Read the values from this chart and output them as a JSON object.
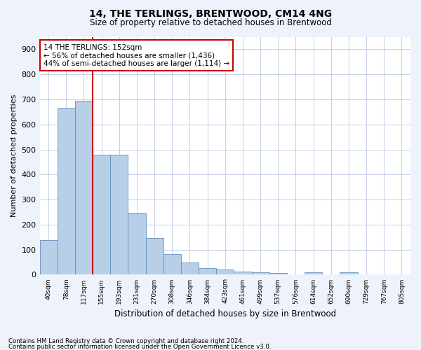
{
  "title1": "14, THE TERLINGS, BRENTWOOD, CM14 4NG",
  "title2": "Size of property relative to detached houses in Brentwood",
  "xlabel": "Distribution of detached houses by size in Brentwood",
  "ylabel": "Number of detached properties",
  "categories": [
    "40sqm",
    "78sqm",
    "117sqm",
    "155sqm",
    "193sqm",
    "231sqm",
    "270sqm",
    "308sqm",
    "346sqm",
    "384sqm",
    "423sqm",
    "461sqm",
    "499sqm",
    "537sqm",
    "576sqm",
    "614sqm",
    "652sqm",
    "690sqm",
    "729sqm",
    "767sqm",
    "805sqm"
  ],
  "values": [
    138,
    665,
    693,
    480,
    480,
    246,
    146,
    82,
    50,
    27,
    22,
    12,
    10,
    8,
    0,
    10,
    0,
    10,
    0,
    0,
    0
  ],
  "bar_color": "#b8cfe8",
  "bar_edge_color": "#6090c0",
  "vline_x": 2.5,
  "vline_color": "#cc0000",
  "annotation_text": "14 THE TERLINGS: 152sqm\n← 56% of detached houses are smaller (1,436)\n44% of semi-detached houses are larger (1,114) →",
  "annotation_box_color": "#ffffff",
  "annotation_box_edge": "#cc0000",
  "ylim": [
    0,
    950
  ],
  "yticks": [
    0,
    100,
    200,
    300,
    400,
    500,
    600,
    700,
    800,
    900
  ],
  "footer1": "Contains HM Land Registry data © Crown copyright and database right 2024.",
  "footer2": "Contains public sector information licensed under the Open Government Licence v3.0.",
  "bg_color": "#eef2fb",
  "plot_bg_color": "#ffffff",
  "grid_color": "#c5cfe8"
}
